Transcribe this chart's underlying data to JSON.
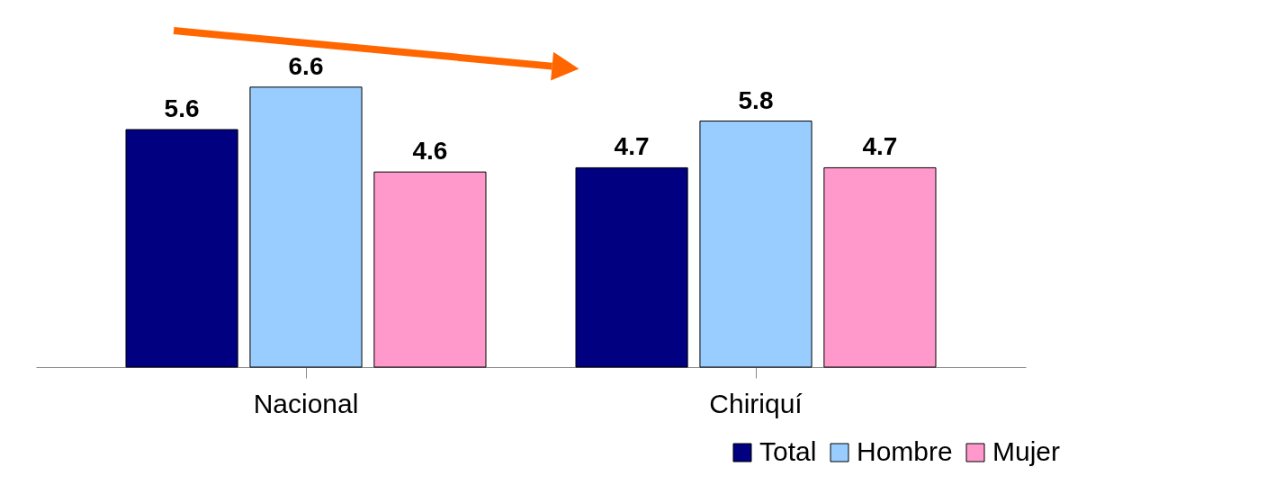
{
  "chart_data": {
    "type": "bar",
    "categories": [
      "Nacional",
      "Chiriquí"
    ],
    "series": [
      {
        "name": "Total",
        "color": "#000080",
        "values": [
          5.6,
          4.7
        ]
      },
      {
        "name": "Hombre",
        "color": "#99ccff",
        "values": [
          6.6,
          5.8
        ]
      },
      {
        "name": "Mujer",
        "color": "#ff99cc",
        "values": [
          4.6,
          4.7
        ]
      }
    ],
    "data_labels": true,
    "legend": "bottom right",
    "grid": false
  }
}
